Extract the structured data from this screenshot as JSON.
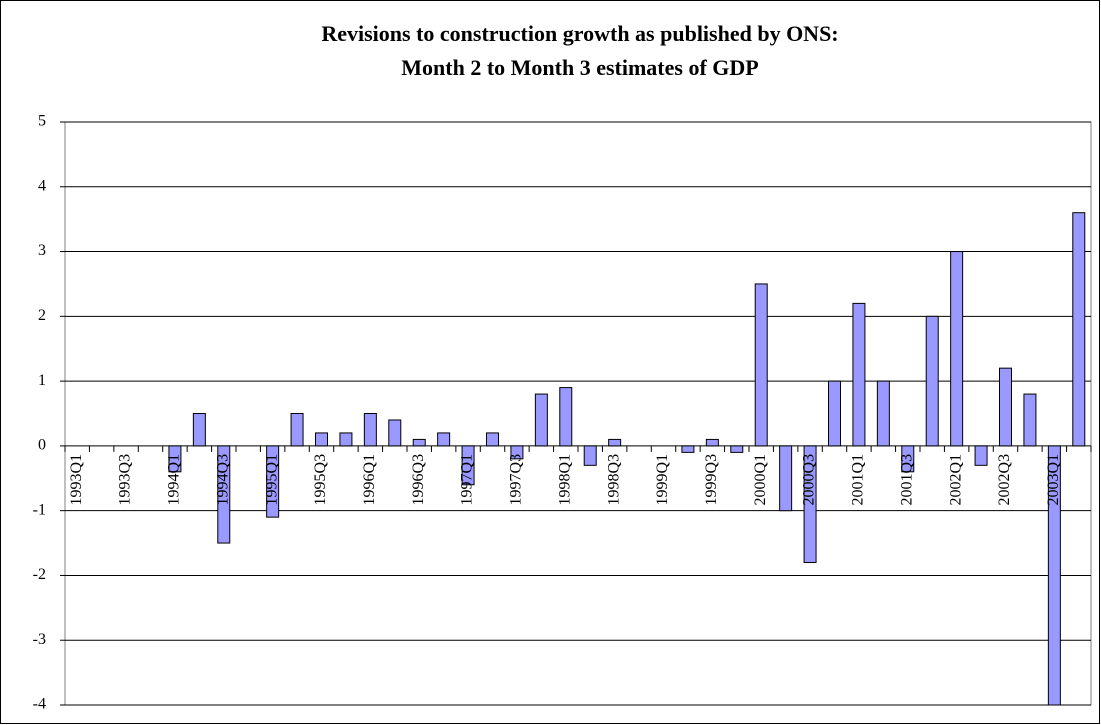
{
  "chart_data": {
    "type": "bar",
    "title": [
      "Revisions to construction growth as published by ONS:",
      "Month 2 to Month 3 estimates of GDP"
    ],
    "categories": [
      "1993Q1",
      null,
      "1993Q3",
      null,
      "1994Q1",
      null,
      "1994Q3",
      null,
      "1995Q1",
      null,
      "1995Q3",
      null,
      "1996Q1",
      null,
      "1996Q3",
      null,
      "1997Q1",
      null,
      "1997Q3",
      null,
      "1998Q1",
      null,
      "1998Q3",
      null,
      "1999Q1",
      null,
      "1999Q3",
      null,
      "2000Q1",
      null,
      "2000Q3",
      null,
      "2001Q1",
      null,
      "2001Q3",
      null,
      "2002Q1",
      null,
      "2002Q3",
      null,
      "2003Q1",
      null
    ],
    "values": [
      0,
      0,
      0,
      0,
      -0.4,
      0.5,
      -1.5,
      0,
      -1.1,
      0.5,
      0.2,
      0.2,
      0.5,
      0.4,
      0.1,
      0.2,
      -0.6,
      0.2,
      -0.2,
      0.8,
      0.9,
      -0.3,
      0.1,
      0,
      0,
      -0.1,
      0.1,
      -0.1,
      2.5,
      -1,
      -1.8,
      1,
      2.2,
      1,
      -0.4,
      2,
      3,
      -0.3,
      1.2,
      0.8,
      -4,
      3.6
    ],
    "color": "#9999ff",
    "ylim": [
      -4,
      5
    ],
    "yticks": [
      -4,
      -3,
      -2,
      -1,
      0,
      1,
      2,
      3,
      4,
      5
    ],
    "grid": true
  }
}
